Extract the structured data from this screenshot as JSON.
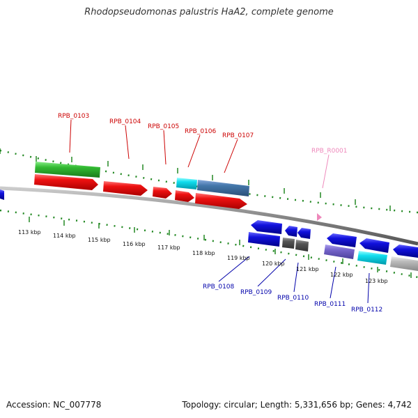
{
  "title": "Rhodopseudomonas palustris HaA2, complete genome",
  "footer": {
    "accession": "Accession: NC_007778",
    "topology": "Topology: circular; Length: 5,331,656 bp; Genes: 4,742"
  },
  "scale_ticks": [
    "113 kbp",
    "114 kbp",
    "115 kbp",
    "116 kbp",
    "117 kbp",
    "118 kbp",
    "119 kbp",
    "120 kbp",
    "121 kbp",
    "122 kbp",
    "123 kbp"
  ],
  "gene_labels": {
    "forward": [
      "RPB_0103",
      "RPB_0104",
      "RPB_0105",
      "RPB_0106",
      "RPB_0107",
      "RPB_R0001"
    ],
    "reverse": [
      "RPB_0108",
      "RPB_0109",
      "RPB_0110",
      "RPB_0111",
      "RPB_0112"
    ]
  },
  "colors": {
    "forward_label": "#cc0000",
    "rna_label": "#ee88bb",
    "reverse_label": "#0000aa",
    "red": "#ee1111",
    "green": "#33bb33",
    "cyan": "#11ddee",
    "steel": "#4477aa",
    "blue": "#1111dd",
    "gray": "#555555",
    "purple": "#7766cc",
    "lightgray": "#bbbbbb",
    "backbone": "#888888",
    "tick": "#228822"
  }
}
